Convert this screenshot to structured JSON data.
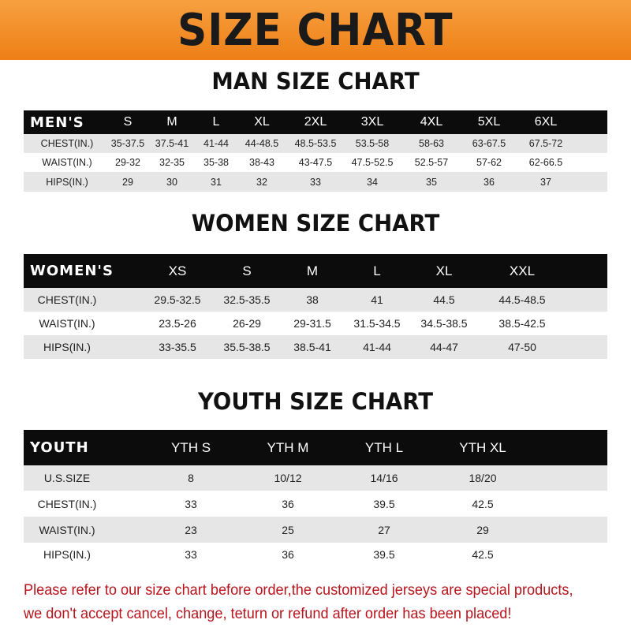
{
  "banner_title": "SIZE CHART",
  "men": {
    "title": "MAN SIZE CHART",
    "header": [
      "MEN'S",
      "S",
      "M",
      "L",
      "XL",
      "2XL",
      "3XL",
      "4XL",
      "5XL",
      "6XL"
    ],
    "rows": [
      [
        "CHEST(IN.)",
        "35-37.5",
        "37.5-41",
        "41-44",
        "44-48.5",
        "48.5-53.5",
        "53.5-58",
        "58-63",
        "63-67.5",
        "67.5-72"
      ],
      [
        "WAIST(IN.)",
        "29-32",
        "32-35",
        "35-38",
        "38-43",
        "43-47.5",
        "47.5-52.5",
        "52.5-57",
        "57-62",
        "62-66.5"
      ],
      [
        "HIPS(IN.)",
        "29",
        "30",
        "31",
        "32",
        "33",
        "34",
        "35",
        "36",
        "37"
      ]
    ]
  },
  "women": {
    "title": "WOMEN SIZE CHART",
    "header": [
      "WOMEN'S",
      "XS",
      "S",
      "M",
      "L",
      "XL",
      "XXL"
    ],
    "rows": [
      [
        "CHEST(IN.)",
        "29.5-32.5",
        "32.5-35.5",
        "38",
        "41",
        "44.5",
        "44.5-48.5"
      ],
      [
        "WAIST(IN.)",
        "23.5-26",
        "26-29",
        "29-31.5",
        "31.5-34.5",
        "34.5-38.5",
        "38.5-42.5"
      ],
      [
        "HIPS(IN.)",
        "33-35.5",
        "35.5-38.5",
        "38.5-41",
        "41-44",
        "44-47",
        "47-50"
      ]
    ]
  },
  "youth": {
    "title": "YOUTH SIZE CHART",
    "header": [
      "YOUTH",
      "YTH S",
      "YTH M",
      "YTH L",
      "YTH XL"
    ],
    "rows": [
      [
        "U.S.SIZE",
        "8",
        "10/12",
        "14/16",
        "18/20"
      ],
      [
        "CHEST(IN.)",
        "33",
        "36",
        "39.5",
        "42.5"
      ],
      [
        "WAIST(IN.)",
        "23",
        "25",
        "27",
        "29"
      ],
      [
        "HIPS(IN.)",
        "33",
        "36",
        "39.5",
        "42.5"
      ]
    ]
  },
  "note": {
    "line1": "Please refer to our size chart before order,the customized jerseys are special products,",
    "line2": "we don't accept cancel, change, teturn or refund after order has been placed!"
  },
  "colors": {
    "banner": "#ee7f16",
    "header_row": "#0c0c0c",
    "alt_row": "#e6e6e6",
    "note_text": "#b8141c"
  }
}
